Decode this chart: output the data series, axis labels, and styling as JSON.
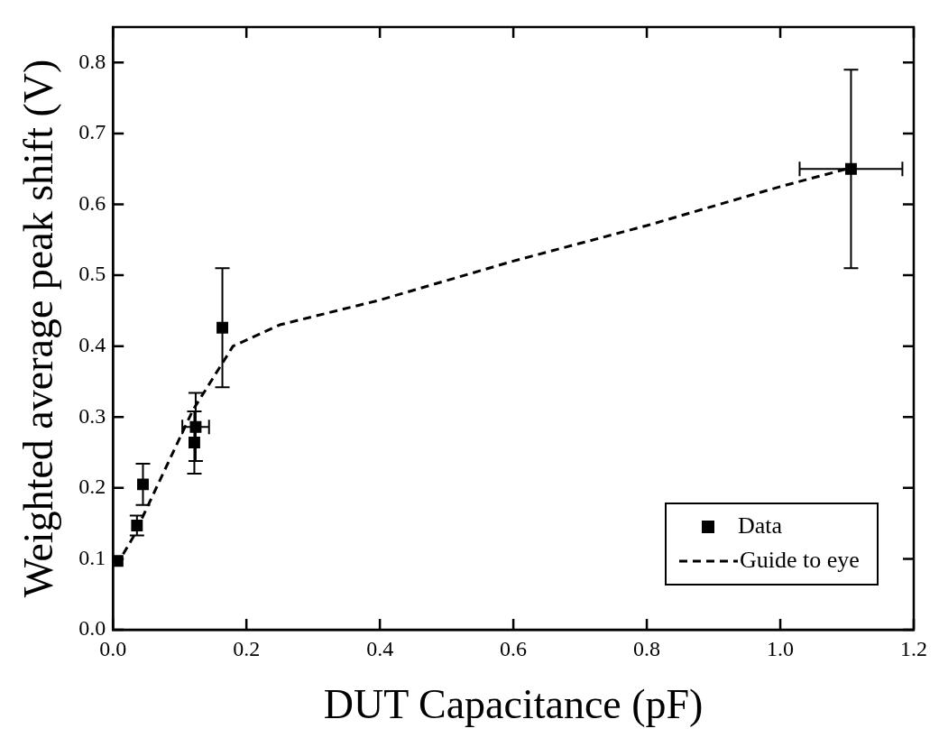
{
  "chart_data": {
    "type": "scatter",
    "xlabel": "DUT Capacitance (pF)",
    "ylabel": "Weighted average peak shift (V)",
    "xlim": [
      0,
      1.2
    ],
    "ylim": [
      0,
      0.85
    ],
    "xticks": [
      {
        "value": 0,
        "label": "0.0"
      },
      {
        "value": 0.2,
        "label": "0.2"
      },
      {
        "value": 0.4,
        "label": "0.4"
      },
      {
        "value": 0.6,
        "label": "0.6"
      },
      {
        "value": 0.8,
        "label": "0.8"
      },
      {
        "value": 1,
        "label": "1.0"
      },
      {
        "value": 1.2,
        "label": "1.2"
      }
    ],
    "yticks": [
      {
        "value": 0,
        "label": "0.0"
      },
      {
        "value": 0.1,
        "label": "0.1"
      },
      {
        "value": 0.2,
        "label": "0.2"
      },
      {
        "value": 0.3,
        "label": "0.3"
      },
      {
        "value": 0.4,
        "label": "0.4"
      },
      {
        "value": 0.5,
        "label": "0.5"
      },
      {
        "value": 0.6,
        "label": "0.6"
      },
      {
        "value": 0.7,
        "label": "0.7"
      },
      {
        "value": 0.8,
        "label": "0.8"
      }
    ],
    "grid": false,
    "legend": "bottom right",
    "series": [
      {
        "name": "Data",
        "type": "scatter",
        "marker": "square",
        "color": "#000000",
        "x": [
          0.007,
          0.036,
          0.045,
          0.124,
          0.122,
          0.164,
          1.106
        ],
        "values": [
          0.097,
          0.147,
          0.205,
          0.286,
          0.264,
          0.426,
          0.65
        ],
        "errors": [
          null,
          0.014,
          0.029,
          0.048,
          0.044,
          0.084,
          0.14
        ],
        "xerrors": [
          null,
          null,
          null,
          0.02,
          null,
          null,
          0.077
        ]
      },
      {
        "name": "Guide to eye",
        "type": "line",
        "marker": "none",
        "line_style": "dashed",
        "color": "#000000",
        "x": [
          0.005,
          0.03,
          0.05,
          0.12,
          0.18,
          0.25,
          0.4,
          0.6,
          0.8,
          1.0,
          1.1
        ],
        "values": [
          0.09,
          0.13,
          0.17,
          0.31,
          0.4,
          0.43,
          0.465,
          0.52,
          0.57,
          0.625,
          0.65
        ]
      }
    ]
  }
}
